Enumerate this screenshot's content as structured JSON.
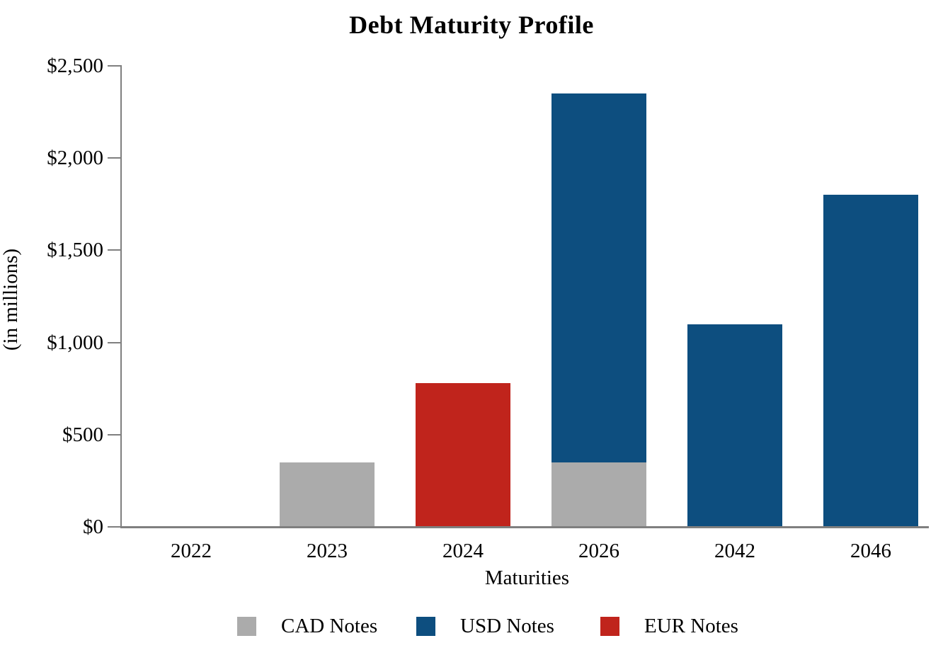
{
  "page": {
    "background": "#ffffff"
  },
  "chart_data": {
    "type": "bar",
    "stacked": true,
    "title": "Debt Maturity Profile",
    "xlabel": "Maturities",
    "ylabel": "(in millions)",
    "categories": [
      "2022",
      "2023",
      "2024",
      "2026",
      "2042",
      "2046"
    ],
    "series": [
      {
        "name": "CAD Notes",
        "color": "#ababab",
        "values": [
          0,
          350,
          0,
          350,
          0,
          0
        ]
      },
      {
        "name": "USD Notes",
        "color": "#0d4e7f",
        "values": [
          0,
          0,
          0,
          2000,
          1100,
          1800
        ]
      },
      {
        "name": "EUR Notes",
        "color": "#c0241c",
        "values": [
          0,
          0,
          780,
          0,
          0,
          0
        ]
      }
    ],
    "ylim": [
      0,
      2500
    ],
    "ytick_step": 500,
    "ytick_labels": [
      "$0",
      "$500",
      "$1,000",
      "$1,500",
      "$2,000",
      "$2,500"
    ],
    "grid": false,
    "legend_position": "bottom",
    "axis_color": "#7f7f7f",
    "text_color": "#000000"
  }
}
